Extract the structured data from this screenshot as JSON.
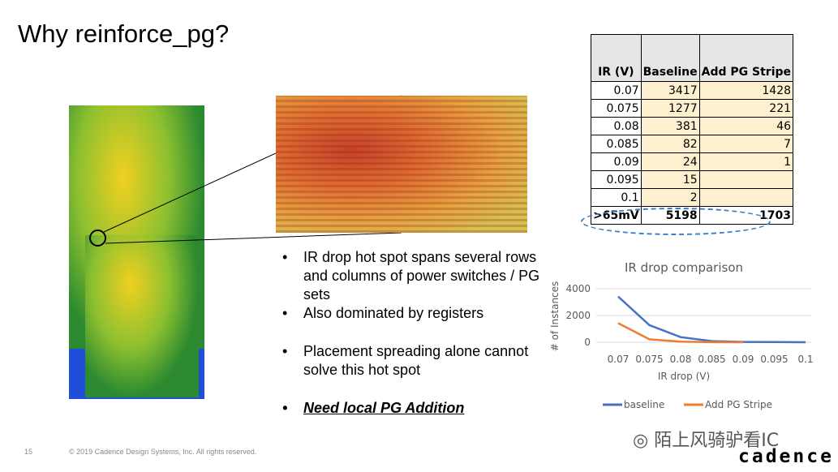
{
  "title": "Why reinforce_pg?",
  "table": {
    "headers": [
      "IR (V)",
      "Baseline",
      "Add PG Stripe"
    ],
    "rows": [
      [
        "0.07",
        "3417",
        "1428"
      ],
      [
        "0.075",
        "1277",
        "221"
      ],
      [
        "0.08",
        "381",
        "46"
      ],
      [
        "0.085",
        "82",
        "7"
      ],
      [
        "0.09",
        "24",
        "1"
      ],
      [
        "0.095",
        "15",
        ""
      ],
      [
        "0.1",
        "2",
        ""
      ]
    ],
    "total": [
      ">65mV",
      "5198",
      "1703"
    ]
  },
  "bullets": [
    "IR drop hot spot spans several rows and columns of power switches / PG sets",
    "Also dominated by registers",
    "Placement spreading alone cannot solve this hot spot",
    "Need local PG Addition"
  ],
  "chart_data": {
    "type": "line",
    "title": "IR drop comparison",
    "xlabel": "IR drop (V)",
    "ylabel": "# of Instances",
    "categories": [
      "0.07",
      "0.075",
      "0.08",
      "0.085",
      "0.09",
      "0.095",
      "0.1"
    ],
    "yticks": [
      "0",
      "2000",
      "4000"
    ],
    "ylim": [
      0,
      4000
    ],
    "grid": true,
    "legend": "bottom",
    "series": [
      {
        "name": "baseline",
        "color": "#4472c4",
        "values": [
          3417,
          1277,
          381,
          82,
          24,
          15,
          2
        ]
      },
      {
        "name": "Add PG Stripe",
        "color": "#ed7d31",
        "values": [
          1428,
          221,
          46,
          7,
          1,
          null,
          null
        ]
      }
    ]
  },
  "footer": {
    "page": "15",
    "copyright": "© 2019 Cadence Design Systems, Inc. All rights reserved."
  },
  "watermark": "陌上风骑驴看IC",
  "logo": "cadence"
}
